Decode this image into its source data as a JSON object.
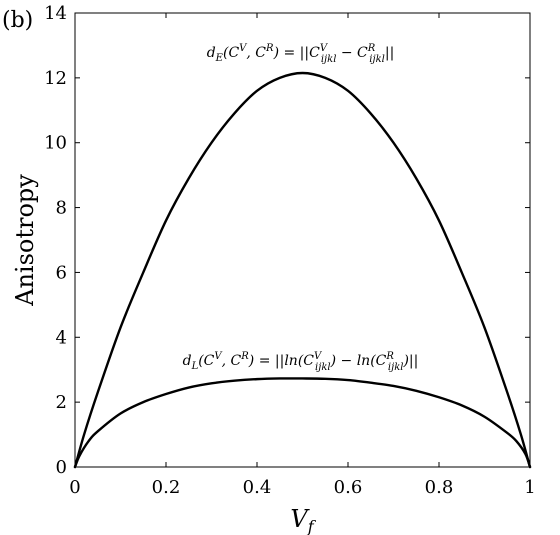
{
  "panel_label": "(b)",
  "chart_data": {
    "type": "line",
    "xlabel": "V_f",
    "ylabel": "Anisotropy",
    "xlim": [
      0,
      1
    ],
    "ylim": [
      0,
      14
    ],
    "xticks": [
      0,
      0.2,
      0.4,
      0.6,
      0.8,
      1
    ],
    "xtick_labels": [
      "0",
      "0.2",
      "0.4",
      "0.6",
      "0.8",
      "1"
    ],
    "yticks": [
      0,
      2,
      4,
      6,
      8,
      10,
      12,
      14
    ],
    "ytick_labels": [
      "0",
      "2",
      "4",
      "6",
      "8",
      "10",
      "12",
      "14"
    ],
    "grid": false,
    "series": [
      {
        "x": [
          0,
          0.02,
          0.05,
          0.1,
          0.15,
          0.2,
          0.25,
          0.3,
          0.35,
          0.4,
          0.45,
          0.5,
          0.55,
          0.6,
          0.65,
          0.7,
          0.75,
          0.8,
          0.85,
          0.9,
          0.95,
          0.98,
          1
        ],
        "y": [
          0,
          1.0,
          2.3,
          4.3,
          6.0,
          7.6,
          8.9,
          10.0,
          10.9,
          11.6,
          12.0,
          12.15,
          12.0,
          11.6,
          10.9,
          10.0,
          8.9,
          7.6,
          6.0,
          4.3,
          2.3,
          1.0,
          0
        ],
        "color": "#000000"
      },
      {
        "x": [
          0,
          0.01,
          0.03,
          0.05,
          0.1,
          0.15,
          0.2,
          0.25,
          0.3,
          0.35,
          0.4,
          0.45,
          0.5,
          0.55,
          0.6,
          0.65,
          0.7,
          0.75,
          0.8,
          0.85,
          0.9,
          0.95,
          0.97,
          0.99,
          1
        ],
        "y": [
          0,
          0.35,
          0.8,
          1.1,
          1.65,
          2.0,
          2.25,
          2.45,
          2.58,
          2.66,
          2.71,
          2.73,
          2.73,
          2.72,
          2.68,
          2.6,
          2.5,
          2.35,
          2.15,
          1.9,
          1.55,
          1.05,
          0.8,
          0.4,
          0
        ],
        "color": "#000000"
      }
    ],
    "annotations": [
      {
        "text": "d_E(C^V, C^R) = ||C^V_ijkl − C^R_ijkl||",
        "x": 0.5,
        "y": 12.65,
        "parts": [
          {
            "t": "d",
            "s": "n"
          },
          {
            "t": "E",
            "s": "sub"
          },
          {
            "t": "(C",
            "s": "n"
          },
          {
            "t": "V",
            "s": "sup"
          },
          {
            "t": ", C",
            "s": "n"
          },
          {
            "t": "R",
            "s": "sup"
          },
          {
            "t": ") = ||C",
            "s": "n"
          },
          {
            "t": "V",
            "s": "sup"
          },
          {
            "t": "ijkl",
            "s": "subb"
          },
          {
            "t": " − C",
            "s": "n"
          },
          {
            "t": "R",
            "s": "sup"
          },
          {
            "t": "ijkl",
            "s": "subb"
          },
          {
            "t": "||",
            "s": "n"
          }
        ]
      },
      {
        "text": "d_L(C^V, C^R) = ||ln(C^V_ijkl) − ln(C^R_ijkl)||",
        "x": 0.5,
        "y": 3.15,
        "parts": [
          {
            "t": "d",
            "s": "n"
          },
          {
            "t": "L",
            "s": "sub"
          },
          {
            "t": "(C",
            "s": "n"
          },
          {
            "t": "V",
            "s": "sup"
          },
          {
            "t": ", C",
            "s": "n"
          },
          {
            "t": "R",
            "s": "sup"
          },
          {
            "t": ") = ||ln(C",
            "s": "n"
          },
          {
            "t": "V",
            "s": "sup"
          },
          {
            "t": "ijkl",
            "s": "subb"
          },
          {
            "t": ") − ln(C",
            "s": "n"
          },
          {
            "t": "R",
            "s": "sup"
          },
          {
            "t": "ijkl",
            "s": "subb"
          },
          {
            "t": ")||",
            "s": "n"
          }
        ]
      }
    ]
  }
}
